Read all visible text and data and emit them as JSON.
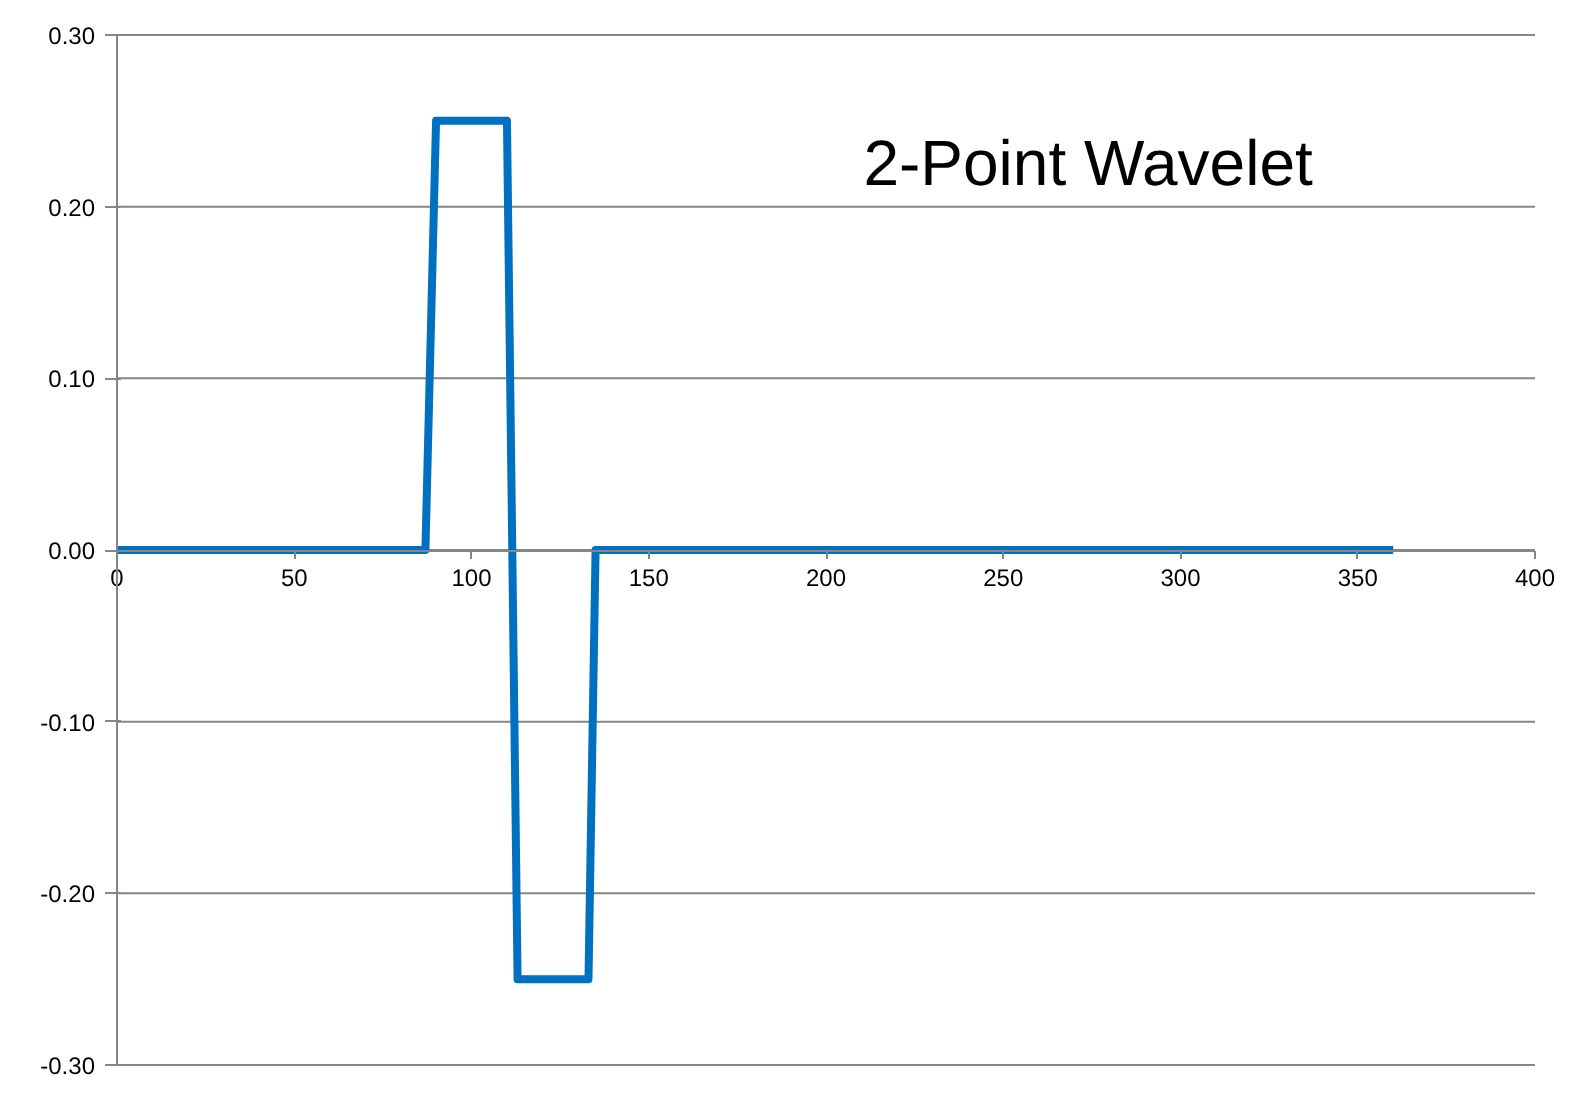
{
  "chart_data": {
    "type": "line",
    "title": "2-Point  Wavelet",
    "x": [
      0,
      87,
      90,
      110,
      113,
      133,
      135,
      360
    ],
    "series": [
      {
        "color": "#0070c0",
        "values": [
          0,
          0,
          0.25,
          0.25,
          -0.25,
          -0.25,
          0,
          0
        ]
      }
    ],
    "xlim": [
      0,
      400
    ],
    "xticks": [
      0,
      50,
      100,
      150,
      200,
      250,
      300,
      350,
      400
    ],
    "ylim": [
      -0.3,
      0.3
    ],
    "yticks": [
      {
        "value": -0.3,
        "label": "-0.30"
      },
      {
        "value": -0.2,
        "label": "-0.20"
      },
      {
        "value": -0.1,
        "label": "-0.10"
      },
      {
        "value": 0,
        "label": "0.00"
      },
      {
        "value": 0.1,
        "label": "0.10"
      },
      {
        "value": 0.2,
        "label": "0.20"
      },
      {
        "value": 0.3,
        "label": "0.30"
      }
    ],
    "grid": "y",
    "marker": "none",
    "line_style": "solid"
  }
}
